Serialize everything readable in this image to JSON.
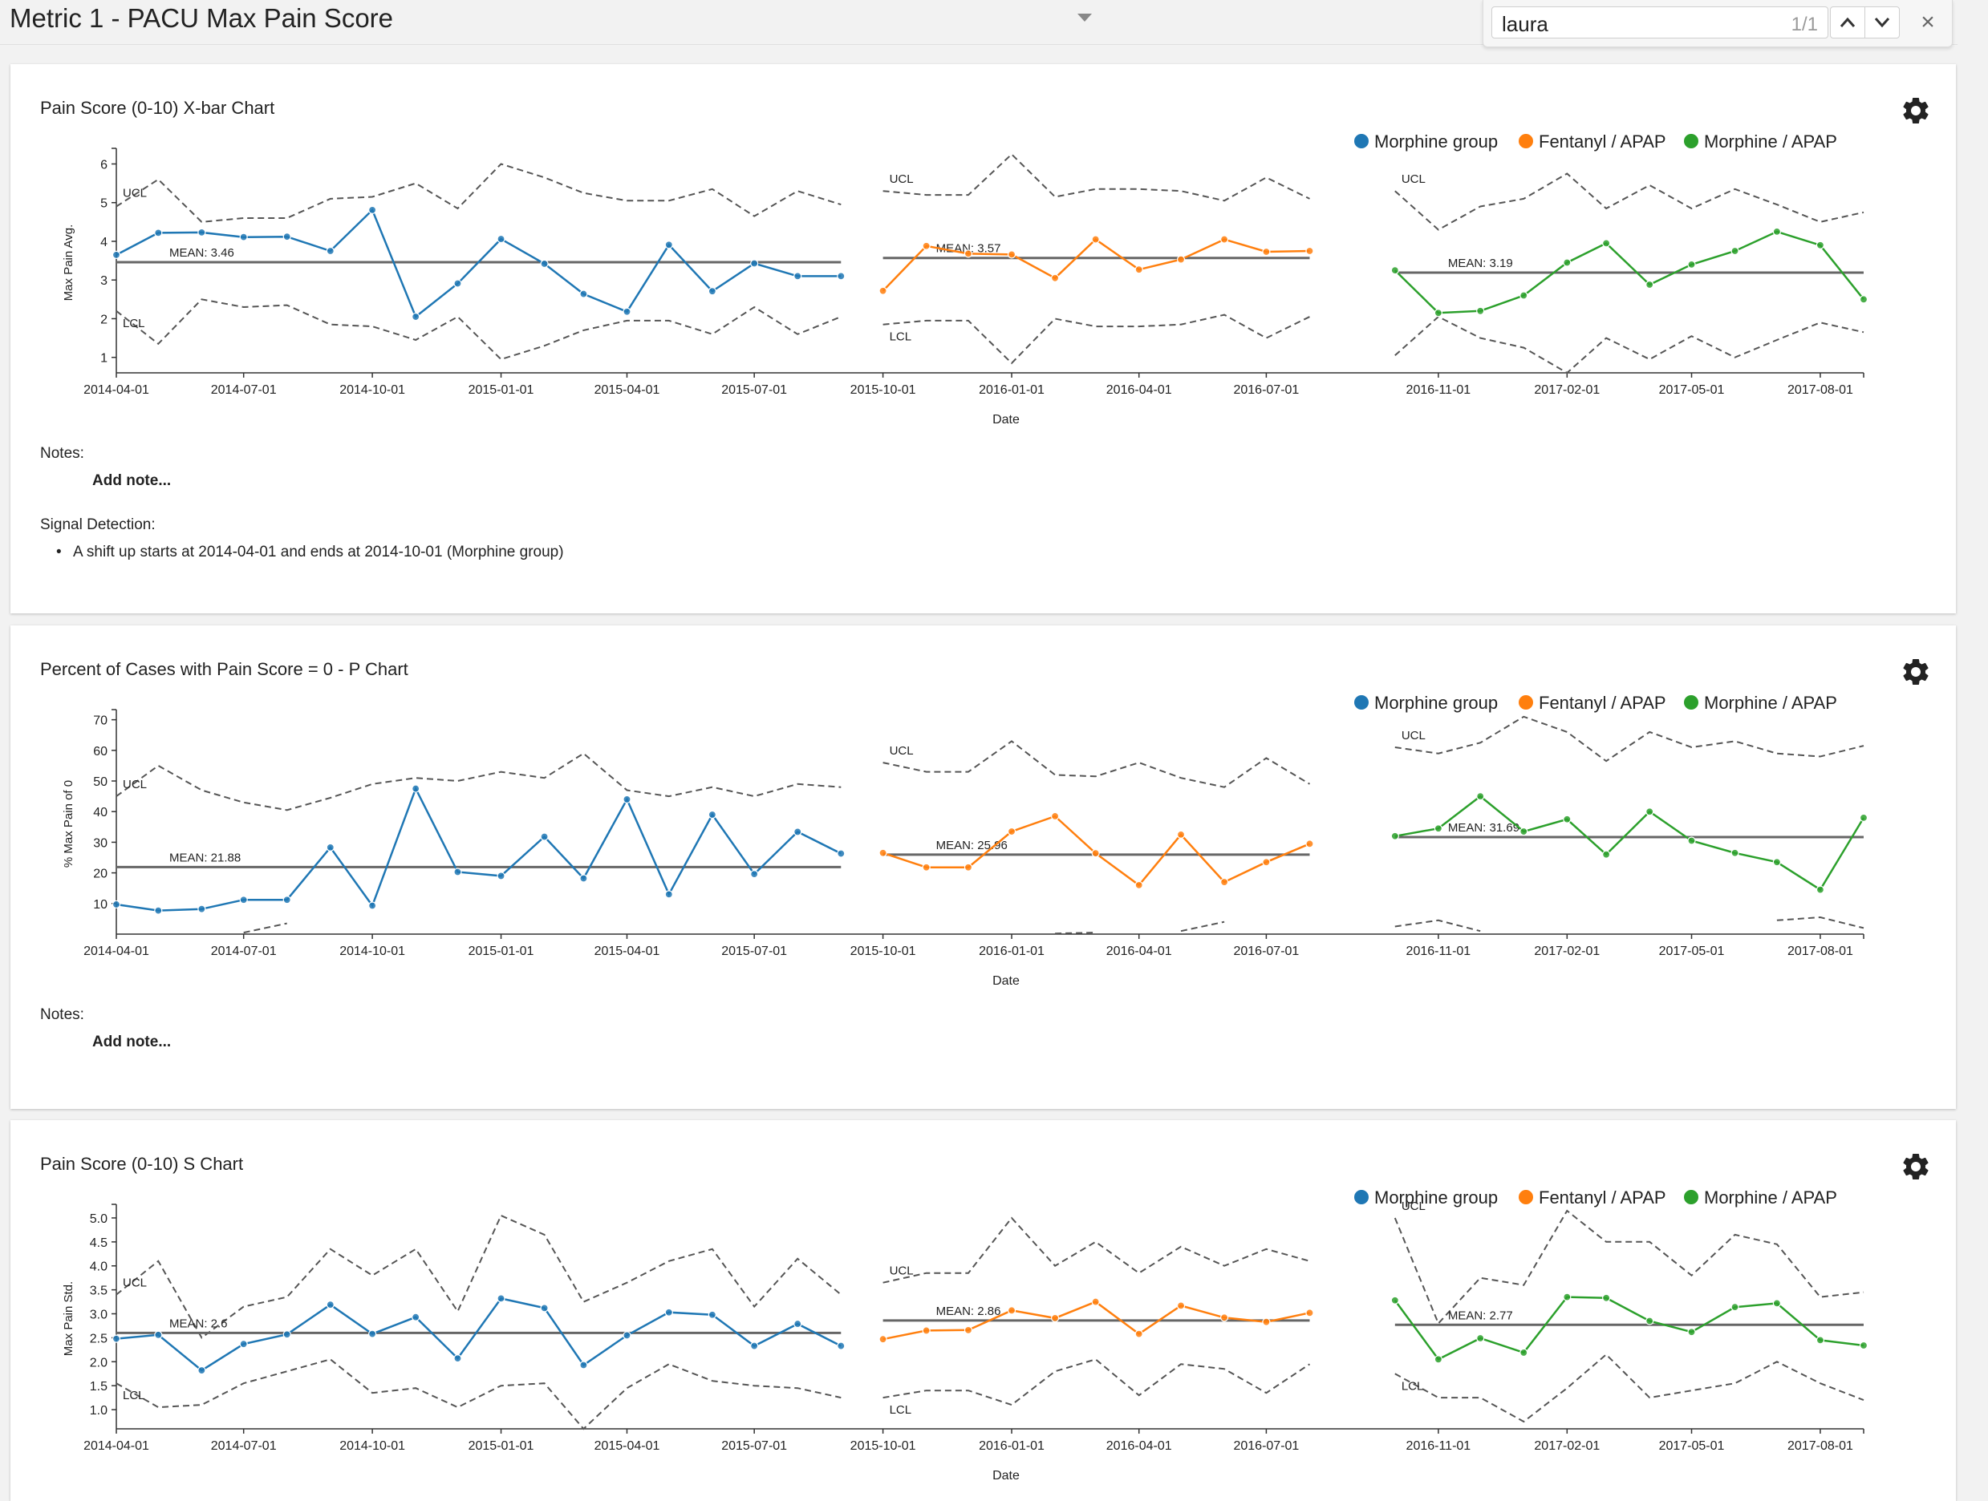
{
  "page": {
    "title": "Metric 1 - PACU Max Pain Score"
  },
  "find_bar": {
    "query": "laura",
    "count": "1/1",
    "close_symbol": "×"
  },
  "cards": [
    {
      "title": "Pain Score (0-10) X-bar Chart",
      "notes_label": "Notes:",
      "add_note": "Add note...",
      "signal_label": "Signal Detection:",
      "signals": [
        "A shift up starts at 2014-04-01 and ends at 2014-10-01 (Morphine group)"
      ]
    },
    {
      "title": "Percent of Cases with Pain Score = 0 - P Chart",
      "notes_label": "Notes:",
      "add_note": "Add note..."
    },
    {
      "title": "Pain Score (0-10) S Chart"
    }
  ],
  "chart_data": [
    {
      "type": "line",
      "title": "Pain Score (0-10) X-bar Chart",
      "xlabel": "Date",
      "ylabel": "Max Pain Avg.",
      "ylim": [
        0.6,
        6.3
      ],
      "yticks": [
        1,
        2,
        3,
        4,
        5,
        6
      ],
      "ytick_labels": [
        "1",
        "2",
        "3",
        "4",
        "5",
        "6"
      ],
      "xticks": [
        "2014-04-01",
        "2014-07-01",
        "2014-10-01",
        "2015-01-01",
        "2015-04-01",
        "2015-07-01",
        "2015-10-01",
        "2016-01-01",
        "2016-04-01",
        "2016-07-01",
        "2016-11-01",
        "2017-02-01",
        "2017-05-01",
        "2017-08-01"
      ],
      "legend": [
        "Morphine group",
        "Fentanyl / APAP",
        "Morphine / APAP"
      ],
      "legend_position": "top-right",
      "series": [
        {
          "name": "Morphine group",
          "color": "#1f77b4",
          "mean": 3.46,
          "mean_label": "MEAN: 3.46",
          "x": [
            "2014-04-01",
            "2014-05-01",
            "2014-06-01",
            "2014-07-01",
            "2014-08-01",
            "2014-09-01",
            "2014-10-01",
            "2014-11-01",
            "2014-12-01",
            "2015-01-01",
            "2015-02-01",
            "2015-03-01",
            "2015-04-01",
            "2015-05-01",
            "2015-06-01",
            "2015-07-01",
            "2015-08-01",
            "2015-09-01"
          ],
          "y": [
            3.65,
            4.22,
            4.23,
            4.11,
            4.12,
            3.75,
            4.81,
            2.05,
            2.91,
            4.06,
            3.42,
            2.64,
            2.18,
            3.91,
            2.71,
            3.43,
            3.1,
            3.1
          ],
          "ucl": [
            4.9,
            5.6,
            4.5,
            4.6,
            4.6,
            5.1,
            5.15,
            5.5,
            4.85,
            6.0,
            5.65,
            5.25,
            5.05,
            5.05,
            5.35,
            4.65,
            5.3,
            4.95
          ],
          "lcl": [
            2.2,
            1.35,
            2.5,
            2.3,
            2.35,
            1.85,
            1.8,
            1.45,
            2.05,
            0.95,
            1.3,
            1.7,
            1.95,
            1.95,
            1.6,
            2.3,
            1.6,
            2.05
          ],
          "ucl_label": "UCL",
          "lcl_label": "LCL"
        },
        {
          "name": "Fentanyl / APAP",
          "color": "#ff7f0e",
          "mean": 3.57,
          "mean_label": "MEAN: 3.57",
          "x": [
            "2015-10-01",
            "2015-11-01",
            "2015-12-01",
            "2016-01-01",
            "2016-02-01",
            "2016-03-01",
            "2016-04-01",
            "2016-05-01",
            "2016-06-01",
            "2016-07-01",
            "2016-08-01"
          ],
          "y": [
            2.72,
            3.88,
            3.68,
            3.66,
            3.05,
            4.05,
            3.27,
            3.53,
            4.05,
            3.73,
            3.75
          ],
          "ucl": [
            5.3,
            5.2,
            5.2,
            6.25,
            5.15,
            5.35,
            5.35,
            5.3,
            5.05,
            5.65,
            5.1
          ],
          "lcl": [
            1.85,
            1.95,
            1.95,
            0.85,
            2.0,
            1.8,
            1.8,
            1.85,
            2.1,
            1.5,
            2.05
          ],
          "ucl_label": "UCL",
          "lcl_label": "LCL"
        },
        {
          "name": "Morphine / APAP",
          "color": "#2ca02c",
          "mean": 3.19,
          "mean_label": "MEAN: 3.19",
          "x": [
            "2016-10-01",
            "2016-11-01",
            "2016-12-01",
            "2017-01-01",
            "2017-02-01",
            "2017-03-01",
            "2017-04-01",
            "2017-05-01",
            "2017-06-01",
            "2017-07-01",
            "2017-08-01",
            "2017-09-01"
          ],
          "y": [
            3.25,
            2.15,
            2.2,
            2.6,
            3.45,
            3.95,
            2.88,
            3.4,
            3.75,
            4.25,
            3.9,
            2.5
          ],
          "ucl": [
            5.3,
            4.3,
            4.9,
            5.1,
            5.75,
            4.85,
            5.45,
            4.85,
            5.35,
            4.95,
            4.5,
            4.75
          ],
          "lcl": [
            1.05,
            2.05,
            1.5,
            1.25,
            0.6,
            1.5,
            0.95,
            1.55,
            1.0,
            1.45,
            1.9,
            1.65
          ],
          "ucl_label": "UCL"
        }
      ]
    },
    {
      "type": "line",
      "title": "Percent of Cases with Pain Score = 0 - P Chart",
      "xlabel": "Date",
      "ylabel": "% Max Pain of 0",
      "ylim": [
        0,
        72
      ],
      "yticks": [
        10,
        20,
        30,
        40,
        50,
        60,
        70
      ],
      "ytick_labels": [
        "10",
        "20",
        "30",
        "40",
        "50",
        "60",
        "70"
      ],
      "xticks": [
        "2014-04-01",
        "2014-07-01",
        "2014-10-01",
        "2015-01-01",
        "2015-04-01",
        "2015-07-01",
        "2015-10-01",
        "2016-01-01",
        "2016-04-01",
        "2016-07-01",
        "2016-11-01",
        "2017-02-01",
        "2017-05-01",
        "2017-08-01"
      ],
      "legend": [
        "Morphine group",
        "Fentanyl / APAP",
        "Morphine / APAP"
      ],
      "legend_position": "top-right",
      "series": [
        {
          "name": "Morphine group",
          "color": "#1f77b4",
          "mean": 21.88,
          "mean_label": "MEAN: 21.88",
          "x": [
            "2014-04-01",
            "2014-05-01",
            "2014-06-01",
            "2014-07-01",
            "2014-08-01",
            "2014-09-01",
            "2014-10-01",
            "2014-11-01",
            "2014-12-01",
            "2015-01-01",
            "2015-02-01",
            "2015-03-01",
            "2015-04-01",
            "2015-05-01",
            "2015-06-01",
            "2015-07-01",
            "2015-08-01",
            "2015-09-01"
          ],
          "y": [
            9.7,
            7.7,
            8.2,
            11.2,
            11.2,
            28.3,
            9.3,
            47.5,
            20.3,
            19.0,
            31.8,
            18.2,
            44.0,
            13.0,
            39.0,
            19.6,
            33.4,
            26.3
          ],
          "ucl": [
            45,
            55,
            47,
            43,
            40.5,
            44.5,
            49,
            51,
            50,
            53,
            51,
            59,
            47,
            45,
            48,
            45,
            49,
            48
          ],
          "lcl": [
            null,
            null,
            null,
            0.5,
            3.5,
            null,
            null,
            null,
            null,
            null,
            null,
            null,
            null,
            null,
            null,
            null,
            null,
            null
          ],
          "ucl_label": "UCL"
        },
        {
          "name": "Fentanyl / APAP",
          "color": "#ff7f0e",
          "mean": 25.96,
          "mean_label": "MEAN: 25.96",
          "x": [
            "2015-10-01",
            "2015-11-01",
            "2015-12-01",
            "2016-01-01",
            "2016-02-01",
            "2016-03-01",
            "2016-04-01",
            "2016-05-01",
            "2016-06-01",
            "2016-07-01",
            "2016-08-01"
          ],
          "y": [
            26.5,
            21.8,
            21.8,
            33.5,
            38.5,
            26.4,
            16.0,
            32.5,
            17.0,
            23.5,
            29.5
          ],
          "ucl": [
            56,
            53,
            53,
            63,
            52,
            51.5,
            56,
            51,
            48,
            57.5,
            49
          ],
          "lcl": [
            null,
            null,
            null,
            null,
            0.2,
            0.5,
            null,
            1.0,
            4.0,
            null,
            null
          ],
          "ucl_label": "UCL"
        },
        {
          "name": "Morphine / APAP",
          "color": "#2ca02c",
          "mean": 31.69,
          "mean_label": "MEAN: 31.69",
          "x": [
            "2016-10-01",
            "2016-11-01",
            "2016-12-01",
            "2017-01-01",
            "2017-02-01",
            "2017-03-01",
            "2017-04-01",
            "2017-05-01",
            "2017-06-01",
            "2017-07-01",
            "2017-08-01",
            "2017-09-01"
          ],
          "y": [
            32.0,
            34.5,
            45.0,
            33.5,
            37.5,
            26.0,
            40.0,
            30.5,
            26.5,
            23.5,
            14.5,
            38.0
          ],
          "ucl": [
            61,
            59,
            62.5,
            71,
            66,
            56.5,
            66,
            61,
            63,
            59,
            58,
            61.5
          ],
          "lcl": [
            2.5,
            4.5,
            1.0,
            null,
            null,
            null,
            null,
            null,
            null,
            4.5,
            5.5,
            2.0
          ],
          "ucl_label": "UCL"
        }
      ]
    },
    {
      "type": "line",
      "title": "Pain Score (0-10) S Chart",
      "xlabel": "Date",
      "ylabel": "Max Pain Std.",
      "ylim": [
        0.6,
        5.2
      ],
      "yticks": [
        1.0,
        1.5,
        2.0,
        2.5,
        3.0,
        3.5,
        4.0,
        4.5,
        5.0
      ],
      "ytick_labels": [
        "1.0",
        "1.5",
        "2.0",
        "2.5",
        "3.0",
        "3.5",
        "4.0",
        "4.5",
        "5.0"
      ],
      "xticks": [
        "2014-04-01",
        "2014-07-01",
        "2014-10-01",
        "2015-01-01",
        "2015-04-01",
        "2015-07-01",
        "2015-10-01",
        "2016-01-01",
        "2016-04-01",
        "2016-07-01",
        "2016-11-01",
        "2017-02-01",
        "2017-05-01",
        "2017-08-01"
      ],
      "legend": [
        "Morphine group",
        "Fentanyl / APAP",
        "Morphine / APAP"
      ],
      "legend_position": "top-right",
      "series": [
        {
          "name": "Morphine group",
          "color": "#1f77b4",
          "mean": 2.6,
          "mean_label": "MEAN: 2.6",
          "x": [
            "2014-04-01",
            "2014-05-01",
            "2014-06-01",
            "2014-07-01",
            "2014-08-01",
            "2014-09-01",
            "2014-10-01",
            "2014-11-01",
            "2014-12-01",
            "2015-01-01",
            "2015-02-01",
            "2015-03-01",
            "2015-04-01",
            "2015-05-01",
            "2015-06-01",
            "2015-07-01",
            "2015-08-01",
            "2015-09-01"
          ],
          "y": [
            2.48,
            2.56,
            1.82,
            2.37,
            2.57,
            3.19,
            2.58,
            2.93,
            2.07,
            3.32,
            3.12,
            1.93,
            2.55,
            3.03,
            2.98,
            2.33,
            2.79,
            2.33
          ],
          "ucl": [
            3.4,
            4.1,
            2.5,
            3.15,
            3.35,
            4.35,
            3.8,
            4.35,
            3.05,
            5.05,
            4.65,
            3.25,
            3.65,
            4.1,
            4.35,
            3.15,
            4.15,
            3.4
          ],
          "lcl": [
            1.55,
            1.05,
            1.1,
            1.55,
            1.8,
            2.05,
            1.35,
            1.45,
            1.05,
            1.5,
            1.55,
            0.6,
            1.45,
            1.95,
            1.6,
            1.5,
            1.45,
            1.25
          ],
          "ucl_label": "UCL",
          "lcl_label": "LCL"
        },
        {
          "name": "Fentanyl / APAP",
          "color": "#ff7f0e",
          "mean": 2.86,
          "mean_label": "MEAN: 2.86",
          "x": [
            "2015-10-01",
            "2015-11-01",
            "2015-12-01",
            "2016-01-01",
            "2016-02-01",
            "2016-03-01",
            "2016-04-01",
            "2016-05-01",
            "2016-06-01",
            "2016-07-01",
            "2016-08-01"
          ],
          "y": [
            2.47,
            2.65,
            2.66,
            3.07,
            2.91,
            3.25,
            2.58,
            3.17,
            2.92,
            2.83,
            3.02
          ],
          "ucl": [
            3.65,
            3.85,
            3.85,
            5.0,
            4.0,
            4.5,
            3.85,
            4.4,
            4.0,
            4.35,
            4.1
          ],
          "lcl": [
            1.25,
            1.4,
            1.4,
            1.1,
            1.8,
            2.05,
            1.3,
            1.95,
            1.85,
            1.35,
            1.95
          ],
          "ucl_label": "UCL",
          "lcl_label": "LCL"
        },
        {
          "name": "Morphine / APAP",
          "color": "#2ca02c",
          "mean": 2.77,
          "mean_label": "MEAN: 2.77",
          "x": [
            "2016-10-01",
            "2016-11-01",
            "2016-12-01",
            "2017-01-01",
            "2017-02-01",
            "2017-03-01",
            "2017-04-01",
            "2017-05-01",
            "2017-06-01",
            "2017-07-01",
            "2017-08-01",
            "2017-09-01"
          ],
          "y": [
            3.28,
            2.05,
            2.49,
            2.19,
            3.35,
            3.33,
            2.85,
            2.62,
            3.14,
            3.22,
            2.45,
            2.34
          ],
          "ucl": [
            5.0,
            2.8,
            3.75,
            3.6,
            5.15,
            4.5,
            4.5,
            3.8,
            4.65,
            4.45,
            3.35,
            3.45
          ],
          "lcl": [
            1.75,
            1.25,
            1.25,
            0.75,
            1.45,
            2.15,
            1.25,
            1.4,
            1.55,
            2.0,
            1.55,
            1.2
          ],
          "ucl_label": "UCL",
          "lcl_label": "LCL"
        }
      ]
    }
  ]
}
